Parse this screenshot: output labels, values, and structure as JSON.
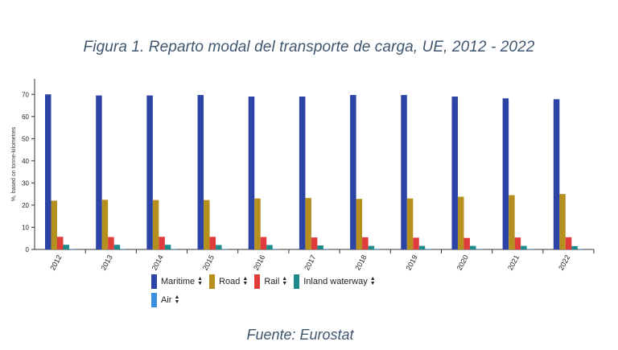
{
  "title": "Figura 1. Reparto modal del transporte de carga, UE, 2012 - 2022",
  "source": "Fuente: Eurostat",
  "chart_data": {
    "type": "bar",
    "ylabel": "%, based on tonne-kilometres",
    "xlabel": "",
    "ylim": [
      0,
      77
    ],
    "yticks": [
      0,
      10,
      20,
      30,
      40,
      50,
      60,
      70
    ],
    "categories": [
      "2012",
      "2013",
      "2014",
      "2015",
      "2016",
      "2017",
      "2018",
      "2019",
      "2020",
      "2021",
      "2022"
    ],
    "series": [
      {
        "name": "Maritime",
        "color": "#2b44a6",
        "values": [
          70.0,
          69.5,
          69.5,
          69.7,
          69.0,
          69.0,
          69.7,
          69.7,
          69.0,
          68.2,
          67.8
        ]
      },
      {
        "name": "Road",
        "color": "#b5901e",
        "values": [
          22.0,
          22.4,
          22.3,
          22.3,
          23.0,
          23.2,
          22.8,
          23.0,
          23.8,
          24.5,
          25.0
        ]
      },
      {
        "name": "Rail",
        "color": "#e03c3c",
        "values": [
          5.7,
          5.6,
          5.7,
          5.7,
          5.6,
          5.4,
          5.5,
          5.3,
          5.2,
          5.4,
          5.5
        ]
      },
      {
        "name": "Inland waterway",
        "color": "#1d8b8b",
        "values": [
          2.1,
          2.1,
          2.1,
          2.0,
          2.0,
          1.8,
          1.6,
          1.6,
          1.6,
          1.6,
          1.5
        ]
      },
      {
        "name": "Air",
        "color": "#3b8fe0",
        "values": [
          0.05,
          0.05,
          0.05,
          0.05,
          0.05,
          0.05,
          0.05,
          0.05,
          0.04,
          0.05,
          0.05
        ]
      }
    ],
    "grid": false,
    "legend_position": "bottom"
  }
}
